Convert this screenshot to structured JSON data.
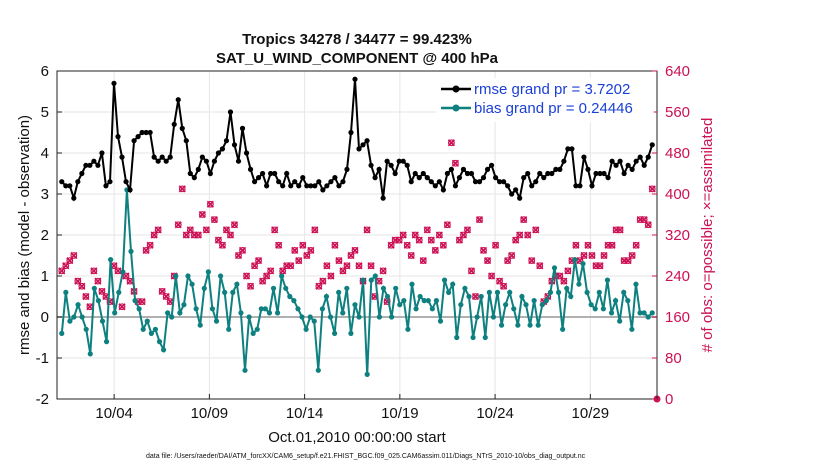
{
  "chart_data": {
    "type": "line",
    "title_line1": "Tropics 34278 / 34477 = 99.423%",
    "title_line2": "SAT_U_WIND_COMPONENT @ 400 hPa",
    "xlabel": "Oct.01,2010 00:00:00 start",
    "ylabel_left": "rmse and bias (model - observation)",
    "ylabel_right": "# of obs: o=possible; ×=assimilated",
    "ylim_left": [
      -2,
      6
    ],
    "ylim_right": [
      0,
      640
    ],
    "xlim": [
      0,
      31.5
    ],
    "yticks_left": [
      -2,
      -1,
      0,
      1,
      2,
      3,
      4,
      5,
      6
    ],
    "yticks_right": [
      0,
      80,
      160,
      240,
      320,
      400,
      480,
      560,
      640
    ],
    "xticks": [
      {
        "pos": 3,
        "label": "10/04"
      },
      {
        "pos": 8,
        "label": "10/09"
      },
      {
        "pos": 13,
        "label": "10/14"
      },
      {
        "pos": 18,
        "label": "10/19"
      },
      {
        "pos": 23,
        "label": "10/24"
      },
      {
        "pos": 28,
        "label": "10/29"
      }
    ],
    "colors": {
      "rmse": "#000000",
      "bias": "#0f8080",
      "obs": "#cc1155",
      "legend_text": "#1a3fd6",
      "zero_line": "#b0b0b0",
      "grid": "#e6e6e6"
    },
    "legend": {
      "position": "top-right",
      "rmse_label": "rmse grand pr = 3.7202",
      "bias_label": "bias grand pr = 0.24446"
    },
    "series": [
      {
        "name": "rmse",
        "axis": "left",
        "values": [
          3.3,
          3.2,
          3.2,
          2.9,
          3.3,
          3.5,
          3.7,
          3.7,
          3.8,
          3.7,
          4.0,
          3.2,
          3.3,
          5.7,
          4.4,
          3.9,
          3.3,
          3.1,
          4.3,
          4.4,
          4.5,
          4.5,
          4.5,
          3.9,
          3.8,
          3.9,
          3.8,
          3.9,
          4.7,
          5.3,
          4.6,
          4.3,
          3.5,
          3.4,
          3.6,
          3.9,
          3.8,
          3.5,
          3.8,
          4.0,
          4.1,
          4.3,
          5.0,
          4.2,
          3.8,
          4.6,
          4.0,
          3.6,
          3.3,
          3.4,
          3.5,
          3.2,
          3.5,
          3.5,
          3.3,
          3.2,
          3.5,
          3.2,
          3.3,
          3.2,
          3.4,
          3.2,
          3.2,
          3.2,
          3.3,
          3.1,
          3.2,
          3.3,
          3.4,
          3.2,
          3.3,
          3.6,
          4.5,
          5.8,
          4.1,
          4.2,
          4.3,
          3.7,
          3.4,
          3.6,
          2.9,
          3.8,
          3.7,
          3.5,
          3.8,
          3.8,
          3.7,
          3.3,
          3.5,
          3.4,
          3.5,
          3.4,
          3.3,
          3.2,
          3.3,
          3.1,
          3.5,
          3.6,
          3.2,
          3.4,
          3.6,
          3.5,
          3.5,
          3.3,
          3.3,
          3.4,
          3.6,
          3.7,
          3.4,
          3.3,
          3.3,
          3.2,
          3.0,
          3.1,
          2.9,
          3.4,
          3.5,
          3.2,
          3.3,
          3.5,
          3.4,
          3.5,
          3.5,
          3.6,
          3.6,
          3.8,
          4.1,
          4.1,
          3.2,
          3.2,
          3.9,
          3.6,
          3.2,
          3.5,
          3.5,
          3.5,
          3.4,
          3.8,
          3.7,
          3.8,
          3.5,
          3.7,
          3.6,
          3.8,
          3.9,
          3.7,
          3.9,
          4.2
        ]
      },
      {
        "name": "bias",
        "axis": "left",
        "values": [
          -0.4,
          0.6,
          -0.1,
          0.0,
          0.3,
          0.0,
          -0.3,
          -0.9,
          0.7,
          0.4,
          -0.1,
          -0.6,
          1.4,
          0.1,
          0.6,
          1.1,
          3.1,
          1.6,
          0.4,
          0.2,
          -0.3,
          -0.1,
          -0.4,
          -0.3,
          -0.6,
          -0.8,
          0.1,
          0.0,
          1.0,
          0.1,
          0.3,
          1.0,
          0.8,
          0.2,
          -0.2,
          0.7,
          1.1,
          0.2,
          -0.1,
          1.0,
          0.6,
          -0.3,
          0.6,
          0.8,
          0.1,
          -1.3,
          0.0,
          -0.4,
          -0.3,
          0.2,
          0.2,
          0.1,
          0.7,
          0.1,
          1.0,
          0.7,
          0.5,
          0.4,
          0.2,
          0.0,
          -0.3,
          0.0,
          -0.1,
          -1.3,
          0.2,
          0.5,
          0.0,
          -0.4,
          0.6,
          0.1,
          0.7,
          -0.4,
          0.3,
          0.0,
          0.9,
          -1.4,
          0.9,
          1.0,
          0.0,
          0.7,
          0.5,
          0.0,
          0.7,
          0.3,
          0.4,
          -0.3,
          0.8,
          0.2,
          0.5,
          0.4,
          0.4,
          0.2,
          0.4,
          -0.1,
          0.9,
          0.6,
          0.8,
          -0.5,
          0.3,
          0.7,
          0.5,
          -0.5,
          0.0,
          0.5,
          -0.5,
          0.6,
          0.0,
          0.6,
          -0.2,
          0.3,
          0.6,
          0.2,
          -0.2,
          0.5,
          0.3,
          -0.2,
          0.4,
          -0.2,
          0.3,
          0.4,
          0.6,
          1.2,
          0.6,
          -0.3,
          0.7,
          0.5,
          1.4,
          0.8,
          1.3,
          0.6,
          0.3,
          0.2,
          0.6,
          0.2,
          0.9,
          0.1,
          0.4,
          -0.1,
          0.6,
          0.4,
          -0.3,
          0.8,
          0.1,
          0.1,
          0.0,
          0.1
        ]
      },
      {
        "name": "obs_count",
        "axis": "right",
        "values": [
          250,
          260,
          270,
          280,
          230,
          220,
          200,
          180,
          250,
          230,
          210,
          200,
          190,
          260,
          250,
          180,
          240,
          230,
          210,
          190,
          190,
          290,
          300,
          320,
          330,
          210,
          200,
          190,
          240,
          340,
          410,
          320,
          330,
          320,
          320,
          360,
          330,
          380,
          350,
          310,
          300,
          330,
          320,
          340,
          280,
          290,
          240,
          220,
          260,
          270,
          230,
          240,
          250,
          330,
          300,
          250,
          260,
          260,
          290,
          270,
          300,
          280,
          290,
          330,
          220,
          230,
          260,
          240,
          300,
          270,
          250,
          260,
          280,
          290,
          260,
          230,
          330,
          260,
          200,
          230,
          250,
          190,
          300,
          310,
          310,
          320,
          300,
          280,
          320,
          310,
          270,
          330,
          310,
          290,
          320,
          300,
          340,
          500,
          460,
          310,
          320,
          330,
          250,
          200,
          350,
          290,
          270,
          240,
          300,
          230,
          220,
          270,
          280,
          310,
          320,
          350,
          320,
          270,
          330,
          260,
          190,
          200,
          230,
          240,
          240,
          230,
          250,
          270,
          300,
          270,
          280,
          300,
          280,
          260,
          260,
          280,
          300,
          300,
          330,
          330,
          270,
          270,
          280,
          300,
          350,
          350,
          340,
          410
        ]
      }
    ]
  },
  "footer": "data file: /Users/raeder/DAI/ATM_forcXX/CAM6_setup/f.e21.FHIST_BGC.f09_025.CAM6assim.011/Diags_NTrS_2010-10/obs_diag_output.nc"
}
